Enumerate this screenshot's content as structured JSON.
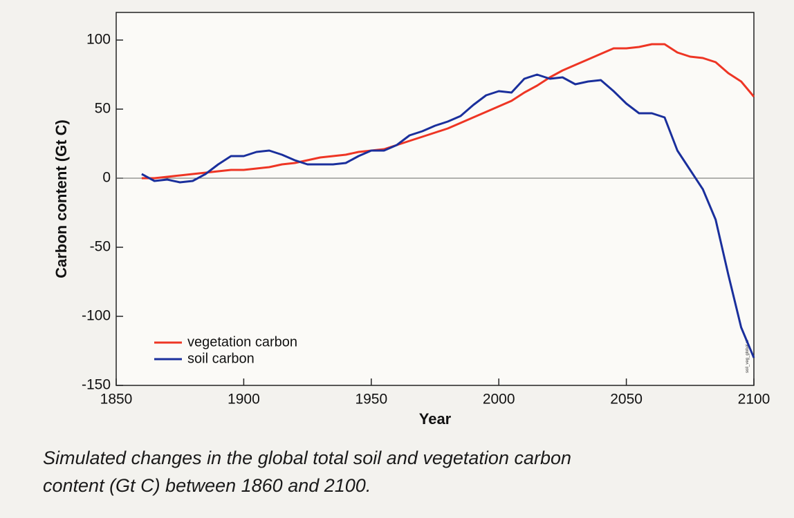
{
  "chart_data": {
    "type": "line",
    "x_label": "Year",
    "y_label": "Carbon content (Gt C)",
    "caption": [
      "Simulated changes in the global total soil and vegetation carbon",
      "content (Gt C) between 1860 and 2100."
    ],
    "file_label": "soil_veg_global.ai",
    "xlim": [
      1850,
      2100
    ],
    "ylim": [
      -150,
      120
    ],
    "xticks": [
      1850,
      1900,
      1950,
      2000,
      2050,
      2100
    ],
    "yticks": [
      -150,
      -100,
      -50,
      0,
      50,
      100
    ],
    "legend": "lower left",
    "x": [
      1860,
      1865,
      1870,
      1875,
      1880,
      1885,
      1890,
      1895,
      1900,
      1905,
      1910,
      1915,
      1920,
      1925,
      1930,
      1935,
      1940,
      1945,
      1950,
      1955,
      1960,
      1965,
      1970,
      1975,
      1980,
      1985,
      1990,
      1995,
      2000,
      2005,
      2010,
      2015,
      2020,
      2025,
      2030,
      2035,
      2040,
      2045,
      2050,
      2055,
      2060,
      2065,
      2070,
      2075,
      2080,
      2085,
      2090,
      2095,
      2100
    ],
    "series": [
      {
        "name": "vegetation carbon",
        "color": "#ee3524",
        "values": [
          0,
          0,
          1,
          2,
          3,
          4,
          5,
          6,
          6,
          7,
          8,
          10,
          11,
          13,
          15,
          16,
          17,
          19,
          20,
          21,
          24,
          27,
          30,
          33,
          36,
          40,
          44,
          48,
          52,
          56,
          62,
          67,
          73,
          78,
          82,
          86,
          90,
          94,
          94,
          95,
          97,
          97,
          91,
          88,
          87,
          84,
          76,
          70,
          59
        ]
      },
      {
        "name": "soil carbon",
        "color": "#1a2f9c",
        "values": [
          3,
          -2,
          -1,
          -3,
          -2,
          3,
          10,
          16,
          16,
          19,
          20,
          17,
          13,
          10,
          10,
          10,
          11,
          16,
          20,
          20,
          24,
          31,
          34,
          38,
          41,
          45,
          53,
          60,
          63,
          62,
          72,
          75,
          72,
          73,
          68,
          70,
          71,
          63,
          54,
          47,
          47,
          44,
          20,
          6,
          -8,
          -30,
          -70,
          -108,
          -130
        ]
      }
    ]
  }
}
